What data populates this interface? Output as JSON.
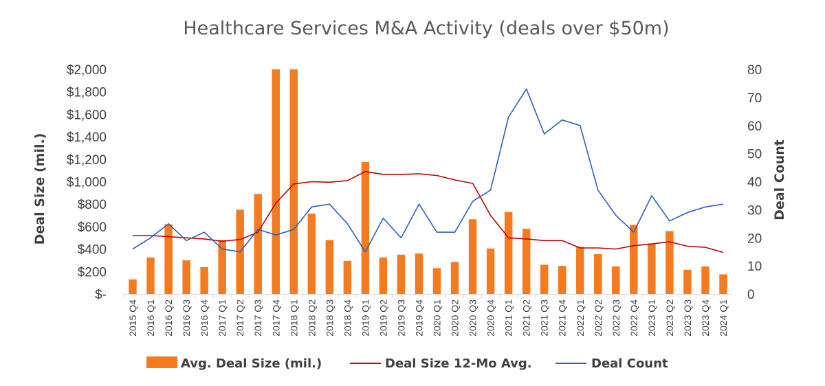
{
  "chart_data": {
    "type": "bar",
    "title": "Healthcare Services M&A Activity (deals over $50m)",
    "ylabel": "Deal Size   (mil.)",
    "y2label": "Deal Count",
    "ylim": [
      0,
      2000
    ],
    "y2lim": [
      0,
      80
    ],
    "yticks": [
      "$-",
      "$200",
      "$400",
      "$600",
      "$800",
      "$1,000",
      "$1,200",
      "$1,400",
      "$1,600",
      "$1,800",
      "$2,000"
    ],
    "y2ticks": [
      "0",
      "10",
      "20",
      "30",
      "40",
      "50",
      "60",
      "70",
      "80"
    ],
    "categories": [
      "2015 Q4",
      "2016 Q1",
      "2016 Q2",
      "2016 Q3",
      "2016 Q4",
      "2017 Q1",
      "2017 Q2",
      "2017 Q3",
      "2017 Q4",
      "2018 Q1",
      "2018 Q2",
      "2018 Q3",
      "2018 Q4",
      "2019 Q1",
      "2019 Q2",
      "2019 Q3",
      "2019 Q4",
      "2020 Q1",
      "2020 Q2",
      "2020 Q3",
      "2020 Q4",
      "2021 Q1",
      "2021 Q2",
      "2021 Q3",
      "2021 Q4",
      "2022 Q1",
      "2022 Q2",
      "2022 Q3",
      "2022 Q4",
      "2023 Q1",
      "2023 Q2",
      "2023 Q3",
      "2023 Q4",
      "2024 Q1"
    ],
    "series": [
      {
        "name": "Avg. Deal Size (mil.)",
        "kind": "bar",
        "axis": "left",
        "color": "#f47b20",
        "values": [
          130,
          325,
          620,
          300,
          240,
          480,
          750,
          890,
          2000,
          2000,
          715,
          480,
          295,
          1175,
          325,
          350,
          360,
          230,
          285,
          665,
          405,
          730,
          580,
          260,
          250,
          420,
          355,
          245,
          615,
          450,
          560,
          215,
          245,
          175
        ]
      },
      {
        "name": "Deal Size 12-Mo Avg.",
        "kind": "line",
        "axis": "left",
        "color": "#c00000",
        "values": [
          520,
          520,
          510,
          500,
          490,
          470,
          485,
          550,
          810,
          980,
          1000,
          995,
          1010,
          1090,
          1065,
          1065,
          1070,
          1055,
          1015,
          985,
          700,
          500,
          490,
          475,
          475,
          410,
          410,
          400,
          430,
          445,
          465,
          425,
          415,
          370
        ]
      },
      {
        "name": "Deal Count",
        "kind": "line",
        "axis": "right",
        "color": "#2e5eb8",
        "values": [
          16,
          20,
          25,
          19,
          22,
          16,
          15,
          23,
          21,
          23,
          31,
          32,
          25,
          15,
          27,
          20,
          32,
          22,
          22,
          33,
          37,
          63,
          73,
          57,
          62,
          60,
          37,
          28,
          22,
          35,
          26,
          29,
          31,
          32
        ]
      }
    ],
    "legend": "bottom",
    "grid": false
  }
}
